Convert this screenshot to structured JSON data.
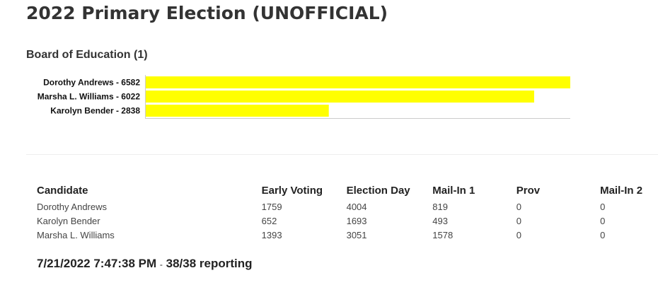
{
  "header": {
    "title": "2022 Primary Election (UNOFFICIAL)"
  },
  "chart_data": {
    "type": "bar",
    "orientation": "horizontal",
    "title": "Board of Education (1)",
    "categories": [
      "Dorothy Andrews - 6582",
      "Marsha L. Williams - 6022",
      "Karolyn Bender - 2838"
    ],
    "values": [
      6582,
      6022,
      2838
    ],
    "color": "#ffff00",
    "xlim": [
      0,
      6582
    ]
  },
  "table": {
    "columns": [
      "Candidate",
      "Early Voting",
      "Election Day",
      "Mail-In 1",
      "Prov",
      "Mail-In 2"
    ],
    "rows": [
      [
        "Dorothy Andrews",
        "1759",
        "4004",
        "819",
        "0",
        "0"
      ],
      [
        "Karolyn Bender",
        "652",
        "1693",
        "493",
        "0",
        "0"
      ],
      [
        "Marsha L. Williams",
        "1393",
        "3051",
        "1578",
        "0",
        "0"
      ]
    ]
  },
  "footer": {
    "timestamp": "7/21/2022 7:47:38 PM",
    "separator": "-",
    "reporting": "38/38 reporting"
  }
}
